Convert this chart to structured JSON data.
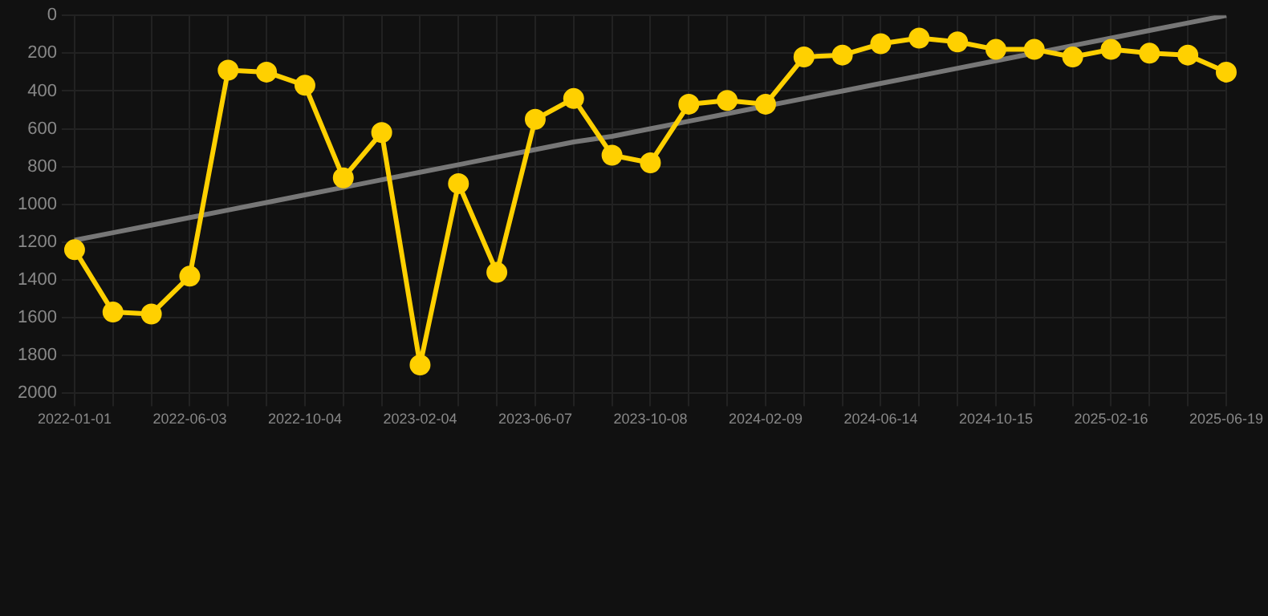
{
  "chart_data": {
    "type": "line",
    "categories": [
      "2022-01-01",
      null,
      null,
      "2022-06-03",
      null,
      null,
      "2022-10-04",
      null,
      null,
      "2023-02-04",
      null,
      null,
      "2023-06-07",
      null,
      null,
      "2023-10-08",
      null,
      null,
      "2024-02-09",
      null,
      null,
      "2024-06-14",
      null,
      null,
      "2024-10-15",
      null,
      null,
      "2025-02-16",
      null,
      null,
      "2025-06-19"
    ],
    "series": [
      {
        "color": "#ffd000",
        "marker": "circle",
        "values": [
          1240,
          1570,
          1580,
          1380,
          290,
          300,
          370,
          860,
          620,
          1850,
          890,
          1360,
          550,
          440,
          740,
          780,
          470,
          450,
          470,
          220,
          210,
          150,
          120,
          140,
          180,
          180,
          220,
          180,
          200,
          210,
          300
        ]
      },
      {
        "type": "line",
        "color": "#777777",
        "marker": "none",
        "values": [
          1190,
          1150,
          1110,
          1070,
          1030,
          990,
          950,
          910,
          870,
          830,
          790,
          750,
          710,
          670,
          640,
          600,
          560,
          520,
          480,
          440,
          400,
          360,
          320,
          280,
          240,
          200,
          160,
          120,
          80,
          40,
          0
        ]
      }
    ],
    "ylim": [
      2000,
      0
    ],
    "yticks": [
      0,
      200,
      400,
      600,
      800,
      1000,
      1200,
      1400,
      1600,
      1800,
      2000
    ],
    "grid": true
  }
}
